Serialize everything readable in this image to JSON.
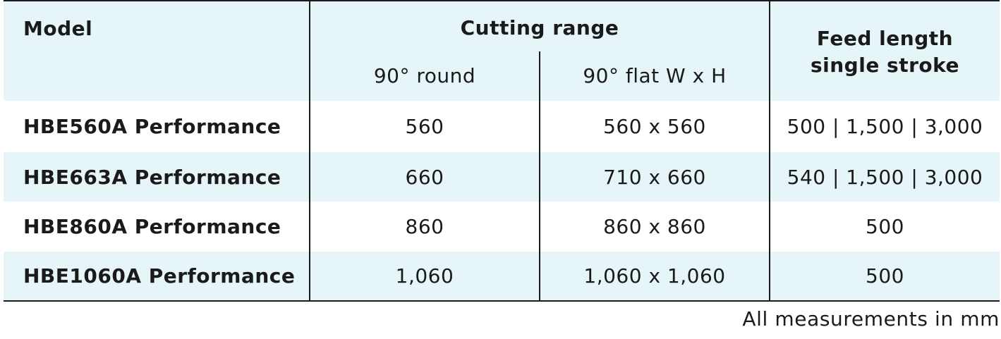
{
  "header": {
    "model": "Model",
    "cutting_range": "Cutting range",
    "round": "90° round",
    "flat": "90° flat W x H",
    "feed_line1": "Feed length",
    "feed_line2": "single stroke"
  },
  "rows": [
    {
      "model": "HBE560A Performance",
      "round": "560",
      "flat": "560 x 560",
      "feed": "500 | 1,500 | 3,000"
    },
    {
      "model": "HBE663A Performance",
      "round": "660",
      "flat": "710 x 660",
      "feed": "540 | 1,500 | 3,000"
    },
    {
      "model": "HBE860A Performance",
      "round": "860",
      "flat": "860 x 860",
      "feed": "500"
    },
    {
      "model": "HBE1060A Performance",
      "round": "1,060",
      "flat": "1,060 x 1,060",
      "feed": "500"
    }
  ],
  "footnote": "All measurements in mm",
  "colors": {
    "row_tint": "#e6f5f8",
    "lines": "#1a1a1a"
  }
}
